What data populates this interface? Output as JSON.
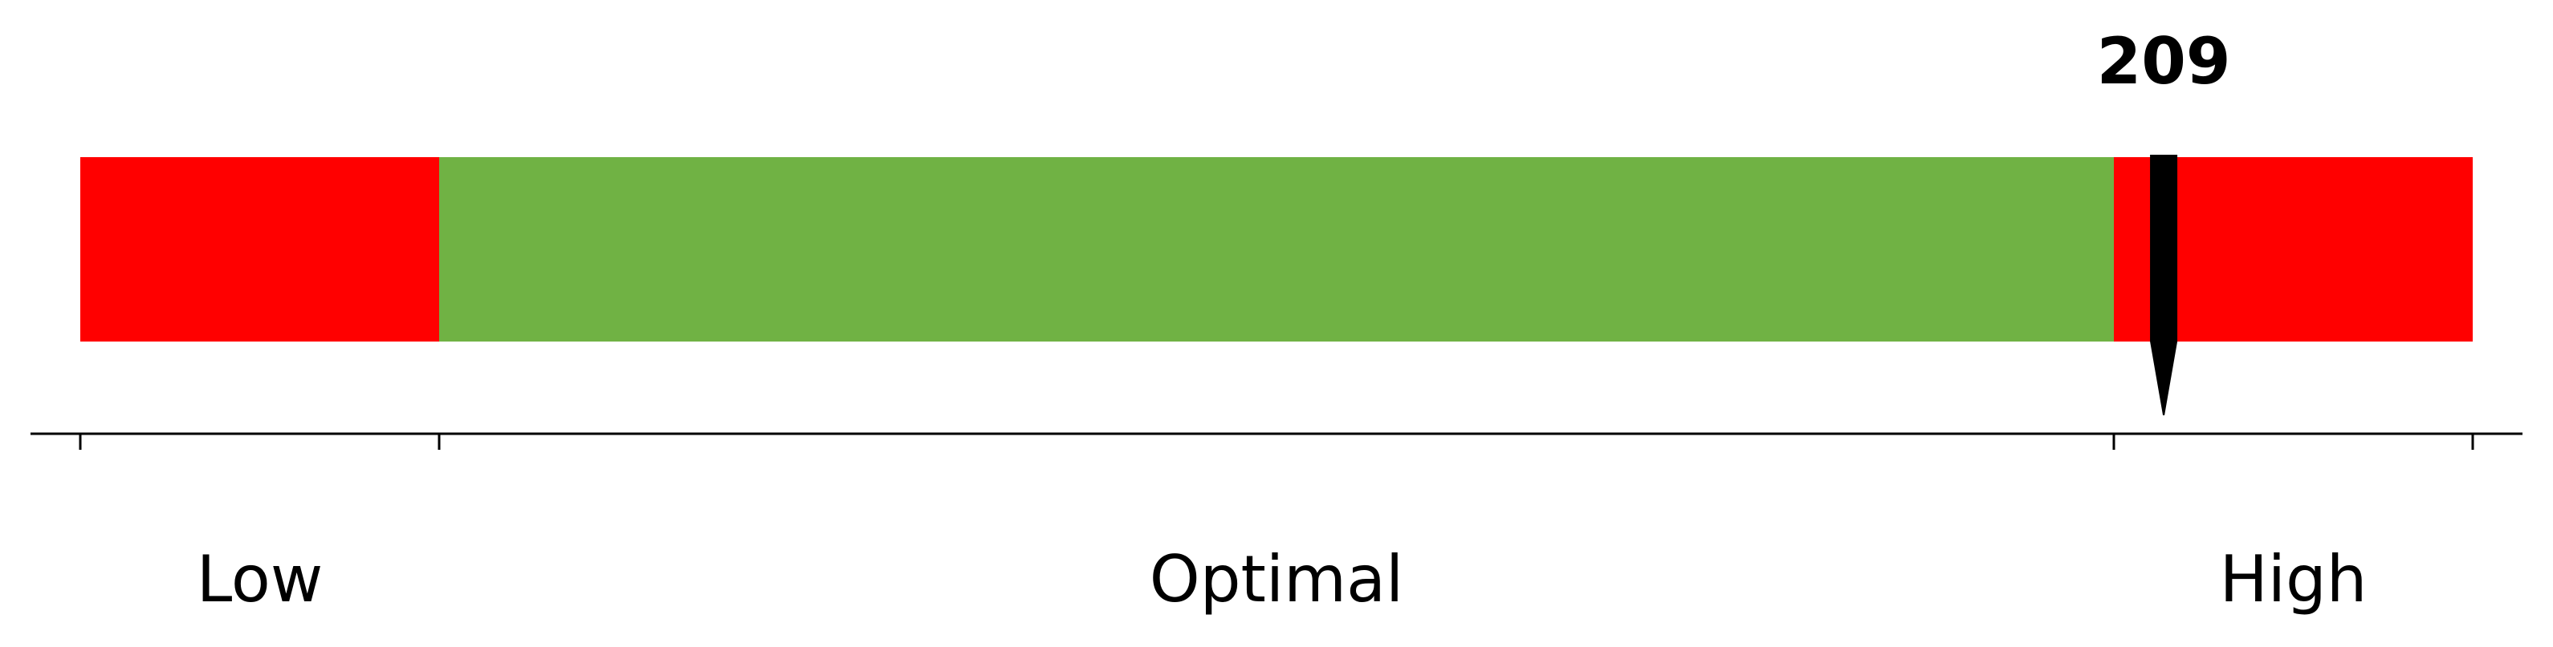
{
  "chart_data": {
    "type": "bar",
    "orientation": "horizontal",
    "range": [
      0,
      240
    ],
    "segments": [
      {
        "label": "Low",
        "from": 0,
        "to": 36,
        "color": "#ff0000"
      },
      {
        "label": "Optimal",
        "from": 36,
        "to": 204,
        "color": "#70b244"
      },
      {
        "label": "High",
        "from": 204,
        "to": 240,
        "color": "#ff0000"
      }
    ],
    "boundaries": [
      0,
      36,
      204,
      240
    ],
    "value": 209,
    "value_label": "209",
    "marker_color": "#000000"
  }
}
